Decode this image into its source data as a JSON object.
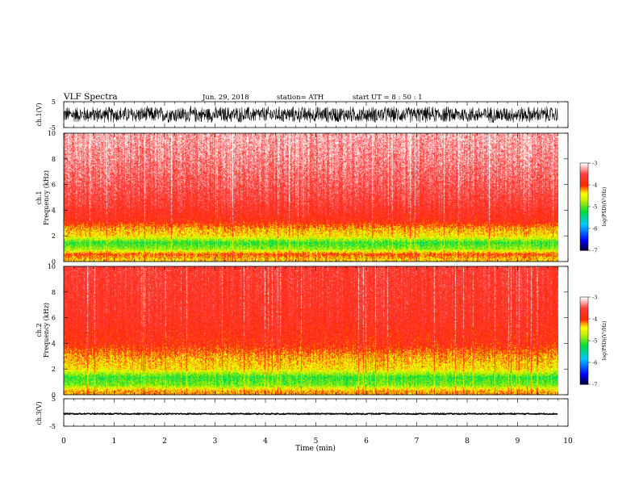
{
  "header": {
    "title": "VLF  Spectra",
    "date": "Jun. 29, 2018",
    "station": "station= ATH",
    "start": "start  UT  =   8  : 50 : 1"
  },
  "chart_data": [
    {
      "type": "line",
      "panel": "ch1-waveform",
      "ylabel": "ch.1(V)",
      "ylim": [
        -5,
        5
      ],
      "y_ticklabels": [
        "5",
        "-5"
      ],
      "xlim": [
        0,
        10
      ],
      "data_xrange": [
        0,
        9.8
      ],
      "series": [
        {
          "y_envelope": [
            -3.5,
            3.5
          ]
        }
      ]
    },
    {
      "type": "heatmap",
      "panel": "ch1-spectrogram",
      "ylabel": "ch.1\nFrequency  (kHz)",
      "ylim": [
        0,
        10
      ],
      "y_ticklabels": [
        "0",
        "2",
        "4",
        "6",
        "8",
        "10"
      ],
      "xlim": [
        0,
        10
      ],
      "data_xrange": [
        0,
        9.8
      ],
      "colorbar": {
        "label": "log(PSD)(V²/Hz)",
        "range": [
          -7,
          -3
        ],
        "ticklabels": [
          "-3",
          "-4",
          "-5",
          "-6",
          "-7"
        ]
      },
      "frequency_profile_kHz": [
        {
          "f": 0.2,
          "log_psd": -4.3
        },
        {
          "f": 0.6,
          "log_psd": -4.0
        },
        {
          "f": 1.0,
          "log_psd": -4.8
        },
        {
          "f": 1.5,
          "log_psd": -5.1
        },
        {
          "f": 2.0,
          "log_psd": -4.4
        },
        {
          "f": 2.6,
          "log_psd": -4.2
        },
        {
          "f": 3.2,
          "log_psd": -3.8
        },
        {
          "f": 4.5,
          "log_psd": -3.6
        },
        {
          "f": 6.0,
          "log_psd": -3.45
        },
        {
          "f": 8.0,
          "log_psd": -3.3
        },
        {
          "f": 10.0,
          "log_psd": -3.2
        }
      ]
    },
    {
      "type": "heatmap",
      "panel": "ch2-spectrogram",
      "ylabel": "ch.2\nFrequency  (kHz)",
      "ylim": [
        0,
        10
      ],
      "y_ticklabels": [
        "0",
        "2",
        "4",
        "6",
        "8",
        "10"
      ],
      "xlim": [
        0,
        10
      ],
      "data_xrange": [
        0,
        9.8
      ],
      "colorbar": {
        "label": "log(PSD)(V²/Hz)",
        "range": [
          -7,
          -3
        ],
        "ticklabels": [
          "-3",
          "-4",
          "-5",
          "-6",
          "-7"
        ]
      },
      "frequency_profile_kHz": [
        {
          "f": 0.3,
          "log_psd": -4.2
        },
        {
          "f": 0.8,
          "log_psd": -4.9
        },
        {
          "f": 1.4,
          "log_psd": -5.1
        },
        {
          "f": 2.0,
          "log_psd": -4.4
        },
        {
          "f": 3.0,
          "log_psd": -4.2
        },
        {
          "f": 4.0,
          "log_psd": -3.85
        },
        {
          "f": 6.0,
          "log_psd": -3.7
        },
        {
          "f": 8.0,
          "log_psd": -3.65
        },
        {
          "f": 10.0,
          "log_psd": -3.6
        }
      ]
    },
    {
      "type": "line",
      "panel": "ch3-waveform",
      "ylabel": "ch.3(V)",
      "ylim": [
        -5,
        5
      ],
      "y_ticklabels": [
        "5",
        "-5"
      ],
      "xlim": [
        0,
        10
      ],
      "data_xrange": [
        0,
        9.8
      ],
      "xlabel": "Time  (min)",
      "x_ticklabels": [
        "0",
        "1",
        "2",
        "3",
        "4",
        "5",
        "6",
        "7",
        "8",
        "9",
        "10"
      ],
      "series": [
        {
          "y_envelope": [
            -0.8,
            -0.2
          ]
        }
      ]
    }
  ]
}
